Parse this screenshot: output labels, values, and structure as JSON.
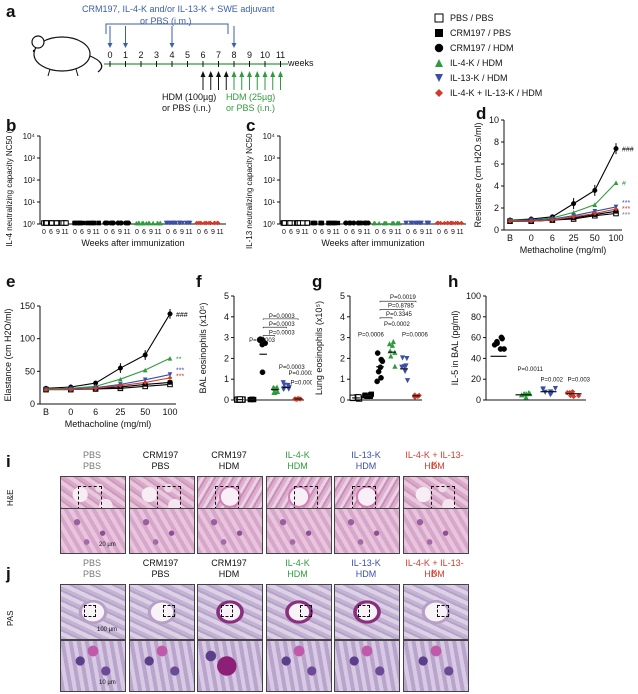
{
  "panels": {
    "a": "a",
    "b": "b",
    "c": "c",
    "d": "d",
    "e": "e",
    "f": "f",
    "g": "g",
    "h": "h",
    "i": "i",
    "j": "j"
  },
  "schedule": {
    "vaccine_line1": "CRM197, IL-4-K and/or IL-13-K + SWE adjuvant",
    "vaccine_line2": "or PBS (i.m.)",
    "weeks_label": "weeks",
    "ticks": [
      "0",
      "1",
      "2",
      "3",
      "4",
      "5",
      "6",
      "7",
      "8",
      "9",
      "10",
      "11"
    ],
    "hdm_100_line1": "HDM (100µg)",
    "hdm_100_line2": "or PBS (i.n.)",
    "hdm_25_line1": "HDM (25µg)",
    "hdm_25_line2": "or PBS (i.n.)"
  },
  "legend": [
    {
      "label": "PBS / PBS",
      "marker": "square-open",
      "color": "#000000"
    },
    {
      "label": "CRM197 / PBS",
      "marker": "square",
      "color": "#000000"
    },
    {
      "label": "CRM197 / HDM",
      "marker": "circle",
      "color": "#000000"
    },
    {
      "label": "IL-4-K / HDM",
      "marker": "triangle-up",
      "color": "#2e9b3c"
    },
    {
      "label": "IL-13-K / HDM",
      "marker": "triangle-down",
      "color": "#3b4fa8"
    },
    {
      "label": "IL-4-K + IL-13-K / HDM",
      "marker": "diamond",
      "color": "#d23b2b"
    }
  ],
  "chart_data": [
    {
      "panel": "b",
      "type": "scatter",
      "ylabel": "IL-4 neutralizing capacity NC50 (dil⁻¹)",
      "xlabel": "Weeks after immunization",
      "y_ticks": [
        "10⁴",
        "10³",
        "10²",
        "10¹",
        "10⁰"
      ],
      "x_ticks": [
        "0",
        "6",
        "9",
        "11"
      ],
      "groups": [
        {
          "name": "PBS / PBS",
          "median": 0
        },
        {
          "name": "CRM197 / PBS",
          "median": 0
        },
        {
          "name": "CRM197 / HDM",
          "median": 0
        },
        {
          "name": "IL-4-K / HDM",
          "median_week6": 300,
          "median_week9": 600,
          "median_week11": 300
        },
        {
          "name": "IL-13-K / HDM",
          "median": 0
        },
        {
          "name": "IL-4-K + IL-13-K / HDM",
          "median_week6": 200,
          "median_week9": 300,
          "median_week11": 250
        }
      ]
    },
    {
      "panel": "c",
      "type": "scatter",
      "ylabel": "IL-13 neutralizing capacity NC50 (dil⁻¹)",
      "xlabel": "Weeks after immunization",
      "y_ticks": [
        "10⁴",
        "10³",
        "10²",
        "10¹",
        "10⁰"
      ],
      "x_ticks": [
        "0",
        "6",
        "9",
        "11"
      ],
      "groups": [
        {
          "name": "IL-13-K / HDM",
          "median_week6": 700,
          "median_week9": 800,
          "median_week11": 600
        },
        {
          "name": "IL-4-K + IL-13-K / HDM",
          "median_week6": 300,
          "median_week9": 250,
          "median_week11": 200
        }
      ]
    },
    {
      "panel": "d",
      "type": "line",
      "ylabel": "Resistance (cm H2O.s/ml)",
      "xlabel": "Methacholine (mg/ml)",
      "categories": [
        "B",
        "0",
        "6",
        "25",
        "50",
        "100"
      ],
      "ylim": [
        0,
        10
      ],
      "y_ticks": [
        "0",
        "2",
        "4",
        "6",
        "8",
        "10"
      ],
      "series": [
        {
          "name": "PBS / PBS",
          "values": [
            0.8,
            0.8,
            0.9,
            1.0,
            1.3,
            1.5
          ]
        },
        {
          "name": "CRM197 / PBS",
          "values": [
            0.8,
            0.8,
            0.9,
            1.1,
            1.4,
            1.7
          ]
        },
        {
          "name": "CRM197 / HDM",
          "values": [
            0.9,
            1.0,
            1.2,
            2.4,
            3.6,
            7.4
          ]
        },
        {
          "name": "IL-4-K / HDM",
          "values": [
            0.9,
            0.9,
            1.1,
            1.6,
            2.3,
            4.3
          ]
        },
        {
          "name": "IL-13-K / HDM",
          "values": [
            0.8,
            0.9,
            1.0,
            1.3,
            1.7,
            2.1
          ]
        },
        {
          "name": "IL-4-K + IL-13-K / HDM",
          "values": [
            0.8,
            0.8,
            0.9,
            1.2,
            1.5,
            1.9
          ]
        }
      ],
      "annotations": [
        "###",
        "#",
        "***",
        "***",
        "***"
      ]
    },
    {
      "panel": "e",
      "type": "line",
      "ylabel": "Elastance (cm H2O/ml)",
      "xlabel": "Methacholine (mg/ml)",
      "categories": [
        "B",
        "0",
        "6",
        "25",
        "50",
        "100"
      ],
      "ylim": [
        0,
        150
      ],
      "y_ticks": [
        "0",
        "50",
        "100",
        "150"
      ],
      "series": [
        {
          "name": "PBS / PBS",
          "values": [
            22,
            22,
            23,
            24,
            27,
            30
          ]
        },
        {
          "name": "CRM197 / PBS",
          "values": [
            22,
            23,
            24,
            26,
            30,
            33
          ]
        },
        {
          "name": "CRM197 / HDM",
          "values": [
            24,
            26,
            32,
            55,
            75,
            138
          ]
        },
        {
          "name": "IL-4-K / HDM",
          "values": [
            23,
            24,
            27,
            38,
            52,
            70
          ]
        },
        {
          "name": "IL-13-K / HDM",
          "values": [
            22,
            23,
            25,
            30,
            37,
            45
          ]
        },
        {
          "name": "IL-4-K + IL-13-K / HDM",
          "values": [
            22,
            22,
            24,
            28,
            33,
            40
          ]
        }
      ],
      "annotations": [
        "###",
        "**",
        "***",
        "***"
      ]
    },
    {
      "panel": "f",
      "type": "scatter",
      "ylabel": "BAL eosinophils (x10⁵)",
      "ylim": [
        0,
        5
      ],
      "y_ticks": [
        "0",
        "1",
        "2",
        "3",
        "4",
        "5"
      ],
      "group_means": [
        0.02,
        0.03,
        2.2,
        0.5,
        0.6,
        0.05
      ],
      "pvalues": [
        "P=0.0003",
        "P=0.0003",
        "P=0.0003",
        "P=0.0003",
        "P=0.0003",
        "P=0.0003",
        "P=0.0003"
      ]
    },
    {
      "panel": "g",
      "type": "scatter",
      "ylabel": "Lung eosinophils (x10⁵)",
      "ylim": [
        0,
        5
      ],
      "y_ticks": [
        "0",
        "1",
        "2",
        "3",
        "4",
        "5"
      ],
      "group_means": [
        0.1,
        0.2,
        1.6,
        2.3,
        1.5,
        0.2
      ],
      "pvalues": [
        "P=0.0019",
        "P=0.8785",
        "P=0.3345",
        "P=0.0006",
        "P=0.0002",
        "P=0.0006"
      ]
    },
    {
      "panel": "h",
      "type": "scatter",
      "ylabel": "IL-5 in BAL (pg/ml)",
      "ylim": [
        0,
        100
      ],
      "y_ticks": [
        "0",
        "20",
        "40",
        "60",
        "80",
        "100"
      ],
      "group_means": [
        42,
        5,
        8,
        6
      ],
      "pvalues": [
        "P=0.0011",
        "P=0.002",
        "P=0.003"
      ]
    }
  ],
  "histology": {
    "row_i_label": "H&E",
    "row_j_label": "PAS",
    "scale_100": "100 µm",
    "scale_20": "20 µm",
    "scale_10": "10 µm",
    "columns": [
      {
        "top": "PBS",
        "bottom": "PBS",
        "top_color": "#777777",
        "bottom_color": "#777777"
      },
      {
        "top": "CRM197",
        "bottom": "PBS",
        "top_color": "#111111",
        "bottom_color": "#111111"
      },
      {
        "top": "CRM197",
        "bottom": "HDM",
        "top_color": "#111111",
        "bottom_color": "#111111"
      },
      {
        "top": "IL-4-K",
        "bottom": "HDM",
        "top_color": "#2e9b3c",
        "bottom_color": "#2e9b3c"
      },
      {
        "top": "IL-13-K",
        "bottom": "HDM",
        "top_color": "#3b4fa8",
        "bottom_color": "#3b4fa8"
      },
      {
        "top": "IL-4-K + IL-13-K",
        "bottom": "HDM",
        "top_color": "#d23b2b",
        "bottom_color": "#d23b2b"
      }
    ]
  }
}
